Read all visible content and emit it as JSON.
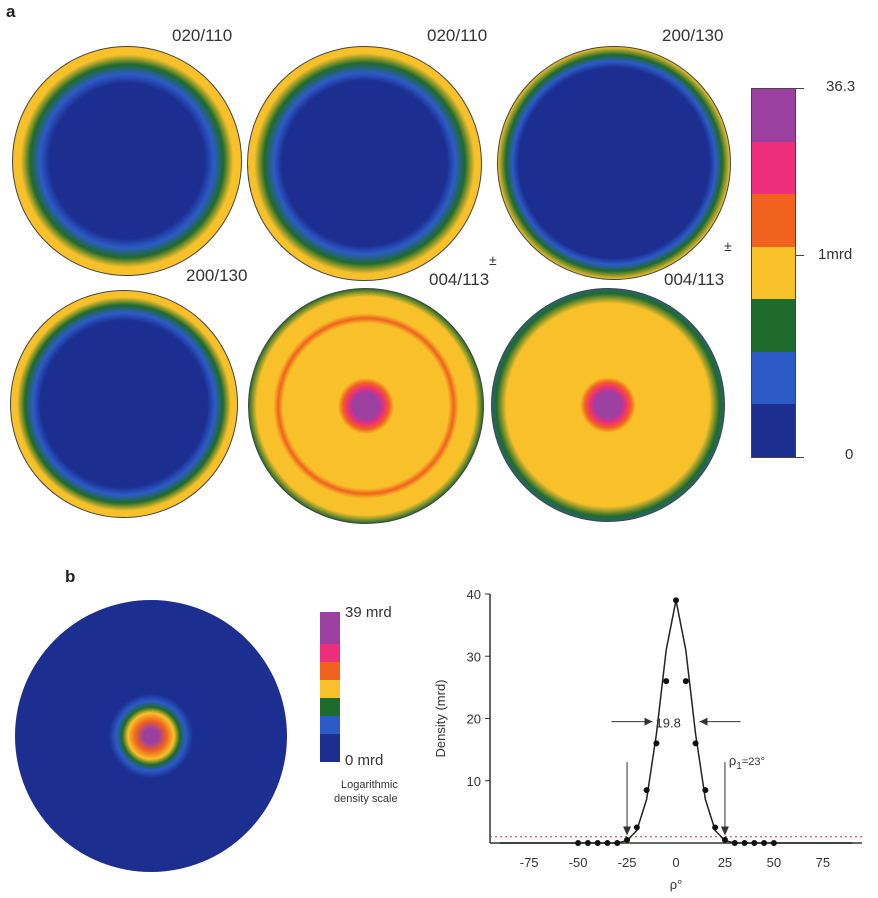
{
  "figure": {
    "panel_a": {
      "letter": "a",
      "pole_figures": [
        {
          "label": "020/110"
        },
        {
          "label": "020/110"
        },
        {
          "label": "200/130"
        },
        {
          "label": "200/130"
        },
        {
          "label": "004/113",
          "mark": "±"
        },
        {
          "label": "004/113",
          "mark": "±"
        }
      ],
      "color_scale": {
        "max": "36.3",
        "mid": "1mrd",
        "min": "0",
        "colors": [
          "#9b3fa0",
          "#ee2e7a",
          "#f0621e",
          "#f8c12a",
          "#1f6b2b",
          "#2c5bc8",
          "#1c2e90"
        ]
      }
    },
    "panel_b": {
      "letter": "b",
      "scale": {
        "max": "39 mrd",
        "min": "0 mrd",
        "caption_line1": "Logarithmic",
        "caption_line2": "density scale",
        "colors": [
          "#9b3fa0",
          "#ee2e7a",
          "#f0621e",
          "#f8c12a",
          "#1f6b2b",
          "#2c5bc8",
          "#1c2e90"
        ]
      }
    }
  },
  "chart_data": {
    "type": "line",
    "xlabel": "ρ°",
    "ylabel": "Density (mrd)",
    "xlim": [
      -95,
      95
    ],
    "ylim": [
      0,
      40
    ],
    "xticks": [
      "-75",
      "-50",
      "-25",
      "0",
      "25",
      "50",
      "75"
    ],
    "yticks": [
      "10",
      "20",
      "30",
      "40"
    ],
    "series": [
      {
        "kind": "curve",
        "x": [
          -90,
          -60,
          -40,
          -30,
          -25,
          -20,
          -15,
          -10,
          -5,
          0,
          5,
          10,
          15,
          20,
          25,
          30,
          40,
          60,
          90
        ],
        "y": [
          0,
          0,
          0,
          0,
          0.4,
          2.0,
          7.0,
          17.5,
          31.0,
          39,
          31.0,
          17.5,
          7.0,
          2.0,
          0.4,
          0,
          0,
          0,
          0
        ]
      },
      {
        "kind": "points",
        "x": [
          -50,
          -45,
          -40,
          -35,
          -30,
          -25,
          -20,
          -15,
          -10,
          -5,
          0,
          5,
          10,
          15,
          20,
          25,
          30,
          35,
          40,
          45,
          50
        ],
        "y": [
          0,
          0,
          0,
          0,
          0,
          0.5,
          2.5,
          8.5,
          16.0,
          26.0,
          39.0,
          26.0,
          16.0,
          8.5,
          2.5,
          0.5,
          0,
          0,
          0,
          0,
          0
        ]
      }
    ],
    "baseline_dotted": 1,
    "annotations": {
      "fwhm": "19.8",
      "rho1": "ρ",
      "rho1_sub": "1",
      "rho1_value": "=23°"
    }
  }
}
